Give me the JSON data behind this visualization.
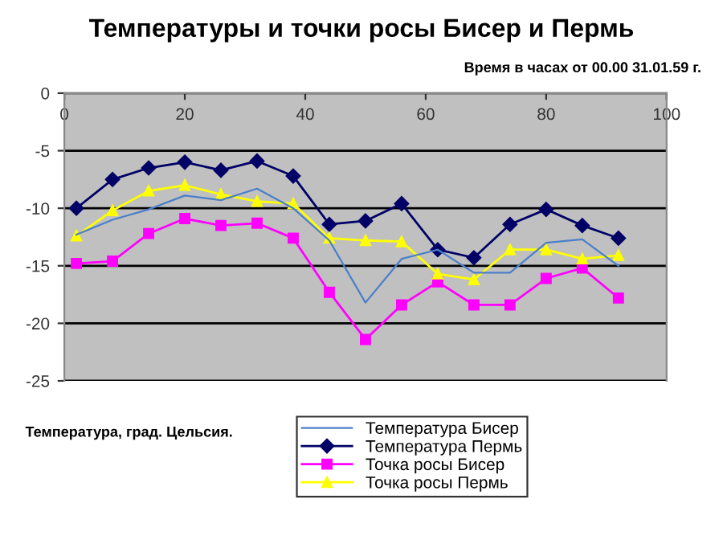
{
  "chart_data": {
    "type": "line",
    "title": "Температуры и точки росы Бисер и Пермь",
    "xlabel": "Время в часах от 00.00 31.01.59 г.",
    "ylabel": "Температура, град. Цельсия.",
    "x": [
      2,
      8,
      14,
      20,
      26,
      32,
      38,
      44,
      50,
      56,
      62,
      68,
      74,
      80,
      86,
      92
    ],
    "series": [
      {
        "name": "Температура Бисер",
        "color": "#4a7fc9",
        "marker": "none",
        "values": [
          -12.3,
          -11.0,
          -10.1,
          -8.9,
          -9.3,
          -8.3,
          -10.0,
          -12.8,
          -18.2,
          -14.4,
          -13.6,
          -15.6,
          -15.6,
          -13.0,
          -12.7,
          -15.0
        ]
      },
      {
        "name": "Температура Пермь",
        "color": "#000066",
        "marker": "diamond",
        "values": [
          -10.0,
          -7.5,
          -6.5,
          -6.0,
          -6.7,
          -5.9,
          -7.2,
          -11.4,
          -11.1,
          -9.6,
          -13.6,
          -14.3,
          -11.4,
          -10.1,
          -11.5,
          -12.6
        ]
      },
      {
        "name": "Точка росы Бисер",
        "color": "#ff00ff",
        "marker": "square",
        "values": [
          -14.8,
          -14.6,
          -12.2,
          -10.9,
          -11.5,
          -11.3,
          -12.6,
          -17.3,
          -21.4,
          -18.4,
          -16.4,
          -18.4,
          -18.4,
          -16.1,
          -15.2,
          -17.8
        ]
      },
      {
        "name": "Точка росы Пермь",
        "color": "#ffff00",
        "marker": "triangle",
        "values": [
          -12.4,
          -10.2,
          -8.5,
          -8.0,
          -8.8,
          -9.4,
          -9.6,
          -12.6,
          -12.8,
          -12.9,
          -15.7,
          -16.2,
          -13.6,
          -13.6,
          -14.4,
          -14.1
        ]
      }
    ],
    "xlim": [
      0,
      100
    ],
    "xticks": [
      0,
      20,
      40,
      60,
      80,
      100
    ],
    "ylim": [
      -25,
      0
    ],
    "yticks": [
      -25,
      -20,
      -15,
      -10,
      -5,
      0
    ],
    "grid": "y",
    "legend": "bottom",
    "line_style": "solid"
  }
}
